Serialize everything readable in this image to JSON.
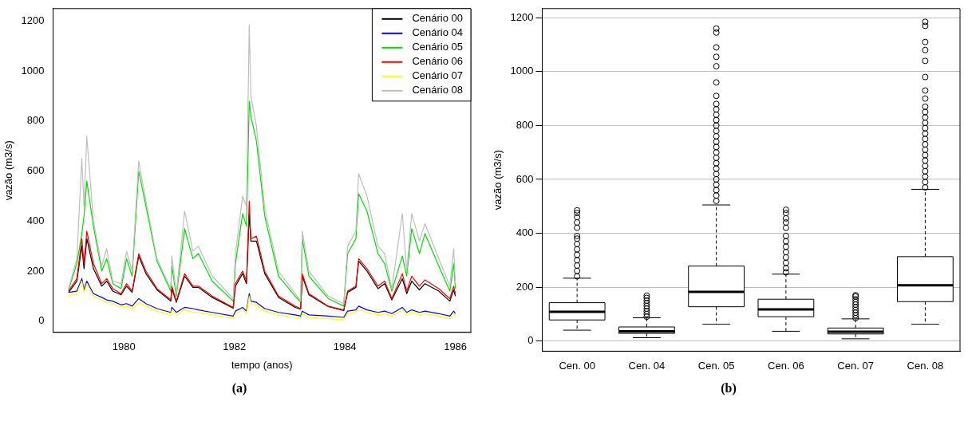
{
  "chart_data": [
    {
      "type": "line",
      "xlabel": "tempo (anos)",
      "ylabel": "vazão (m3/s)",
      "annotations": [
        "(a)"
      ],
      "legend": "top right",
      "x": [
        1979.0,
        1979.15,
        1979.24,
        1979.28,
        1979.33,
        1979.45,
        1979.6,
        1979.69,
        1979.8,
        1979.95,
        1980.05,
        1980.15,
        1980.27,
        1980.4,
        1980.6,
        1980.85,
        1980.87,
        1980.95,
        1981.1,
        1981.25,
        1981.35,
        1981.6,
        1981.98,
        1982.02,
        1982.15,
        1982.22,
        1982.27,
        1982.3,
        1982.4,
        1982.55,
        1982.8,
        1983.1,
        1983.2,
        1983.23,
        1983.35,
        1983.7,
        1983.98,
        1984.05,
        1984.2,
        1984.25,
        1984.4,
        1984.6,
        1984.72,
        1984.85,
        1985.04,
        1985.12,
        1985.21,
        1985.35,
        1985.45,
        1985.7,
        1985.9,
        1985.97,
        1986.0
      ],
      "xlim": [
        1978.72,
        1986.28
      ],
      "xticks": [
        1980,
        1982,
        1984,
        1986
      ],
      "ylim": [
        -45,
        1250
      ],
      "yticks": [
        0,
        200,
        400,
        600,
        800,
        1000,
        1200
      ],
      "series": [
        {
          "name": "Cenário 00",
          "color": "#000000",
          "values": [
            115,
            160,
            300,
            210,
            330,
            210,
            140,
            160,
            120,
            105,
            140,
            115,
            260,
            190,
            125,
            80,
            130,
            75,
            180,
            135,
            135,
            95,
            52,
            140,
            190,
            150,
            430,
            320,
            320,
            190,
            95,
            55,
            48,
            180,
            105,
            58,
            42,
            115,
            135,
            240,
            200,
            130,
            150,
            85,
            170,
            110,
            160,
            125,
            150,
            120,
            80,
            125,
            100
          ]
        },
        {
          "name": "Cenário 04",
          "color": "#0000ff",
          "values": [
            115,
            120,
            170,
            125,
            160,
            110,
            95,
            85,
            80,
            65,
            70,
            60,
            90,
            70,
            50,
            35,
            55,
            35,
            55,
            50,
            45,
            35,
            20,
            40,
            55,
            40,
            110,
            80,
            75,
            50,
            35,
            25,
            20,
            40,
            25,
            20,
            15,
            40,
            45,
            60,
            45,
            35,
            40,
            30,
            55,
            35,
            45,
            35,
            40,
            30,
            20,
            40,
            30
          ]
        },
        {
          "name": "Cenário 05",
          "color": "#00dd00",
          "values": [
            125,
            230,
            350,
            420,
            560,
            380,
            200,
            250,
            150,
            130,
            250,
            180,
            600,
            460,
            240,
            120,
            220,
            100,
            370,
            250,
            270,
            160,
            80,
            230,
            430,
            380,
            880,
            820,
            720,
            420,
            180,
            100,
            75,
            330,
            180,
            90,
            60,
            270,
            330,
            510,
            440,
            270,
            230,
            120,
            260,
            180,
            370,
            270,
            350,
            220,
            120,
            230,
            130
          ]
        },
        {
          "name": "Cenário 06",
          "color": "#ff0000",
          "values": [
            120,
            170,
            330,
            230,
            360,
            230,
            150,
            170,
            130,
            110,
            150,
            120,
            270,
            200,
            130,
            85,
            140,
            80,
            190,
            140,
            140,
            100,
            55,
            150,
            200,
            160,
            480,
            330,
            340,
            200,
            100,
            60,
            50,
            190,
            110,
            60,
            45,
            120,
            140,
            250,
            210,
            140,
            160,
            90,
            190,
            120,
            180,
            140,
            165,
            130,
            90,
            140,
            110
          ]
        },
        {
          "name": "Cenário 07",
          "color": "#ffff00",
          "values": [
            102,
            110,
            160,
            115,
            150,
            100,
            85,
            75,
            70,
            55,
            60,
            50,
            75,
            60,
            40,
            25,
            45,
            25,
            45,
            35,
            35,
            25,
            12,
            30,
            45,
            30,
            100,
            70,
            65,
            40,
            25,
            15,
            10,
            30,
            15,
            10,
            6,
            30,
            35,
            50,
            35,
            25,
            30,
            20,
            45,
            25,
            35,
            25,
            30,
            20,
            10,
            30,
            20
          ]
        },
        {
          "name": "Cenário 08",
          "color": "#bebebe",
          "values": [
            130,
            250,
            650,
            460,
            740,
            400,
            220,
            290,
            160,
            150,
            280,
            200,
            640,
            480,
            250,
            130,
            260,
            110,
            440,
            280,
            300,
            180,
            90,
            270,
            500,
            460,
            1185,
            900,
            780,
            450,
            200,
            110,
            80,
            360,
            200,
            100,
            70,
            300,
            360,
            590,
            500,
            300,
            270,
            130,
            430,
            200,
            430,
            320,
            390,
            250,
            140,
            290,
            150
          ]
        }
      ]
    },
    {
      "type": "box",
      "ylabel": "vazão (m3/s)",
      "annotations": [
        "(b)"
      ],
      "grid": "y",
      "categories": [
        "Cen. 00",
        "Cen. 04",
        "Cen. 05",
        "Cen. 06",
        "Cen. 07",
        "Cen. 08"
      ],
      "ylim": [
        -38,
        1234
      ],
      "yticks": [
        0,
        200,
        400,
        600,
        800,
        1000,
        1200
      ],
      "boxes": [
        {
          "low": 40,
          "q1": 78,
          "median": 108,
          "q3": 142,
          "high": 233,
          "outliers": [
            240,
            260,
            280,
            300,
            320,
            340,
            360,
            380,
            390,
            420,
            440,
            460,
            475,
            485
          ]
        },
        {
          "low": 12,
          "q1": 28,
          "median": 36,
          "q3": 52,
          "high": 86,
          "outliers": [
            90,
            100,
            110,
            120,
            130,
            140,
            150,
            160,
            168
          ]
        },
        {
          "low": 62,
          "q1": 127,
          "median": 182,
          "q3": 278,
          "high": 505,
          "outliers": [
            520,
            540,
            560,
            580,
            600,
            620,
            640,
            660,
            680,
            700,
            720,
            740,
            760,
            780,
            800,
            820,
            840,
            860,
            880,
            910,
            960,
            1020,
            1055,
            1090,
            1145,
            1160
          ]
        },
        {
          "low": 36,
          "q1": 90,
          "median": 117,
          "q3": 155,
          "high": 248,
          "outliers": [
            255,
            270,
            290,
            310,
            330,
            350,
            370,
            390,
            420,
            440,
            455,
            475,
            487
          ]
        },
        {
          "low": 8,
          "q1": 26,
          "median": 34,
          "q3": 48,
          "high": 82,
          "outliers": [
            85,
            95,
            105,
            115,
            125,
            135,
            145,
            155,
            165,
            170
          ]
        },
        {
          "low": 62,
          "q1": 146,
          "median": 207,
          "q3": 313,
          "high": 563,
          "outliers": [
            570,
            590,
            610,
            630,
            650,
            670,
            690,
            710,
            730,
            750,
            770,
            790,
            810,
            830,
            850,
            870,
            900,
            930,
            980,
            1040,
            1080,
            1110,
            1170,
            1185
          ]
        }
      ]
    }
  ]
}
